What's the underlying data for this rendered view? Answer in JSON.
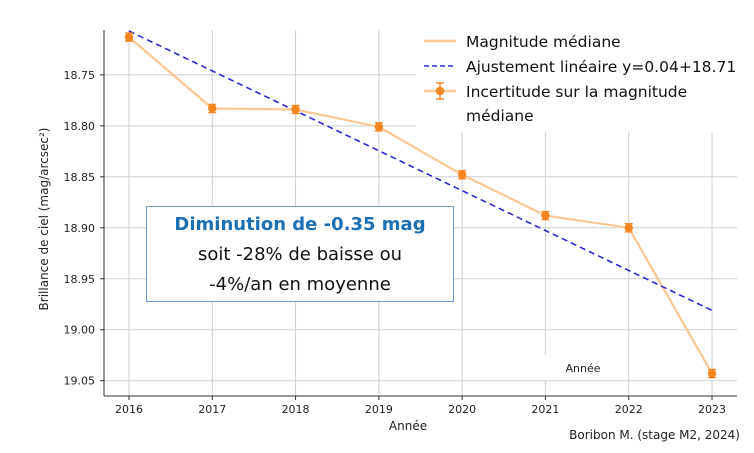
{
  "chart_data": {
    "type": "line",
    "xlabel": "Année",
    "ylabel": "Brillance de ciel (mag/arcsec²)",
    "x": [
      2016,
      2017,
      2018,
      2019,
      2020,
      2021,
      2022,
      2023
    ],
    "xlim": [
      2015.7,
      2023.3
    ],
    "ylim": [
      19.065,
      18.706
    ],
    "y_inverted": true,
    "yticks": [
      18.75,
      18.8,
      18.85,
      18.9,
      18.95,
      19.0,
      19.05
    ],
    "ytick_labels": [
      "18.75",
      "18.80",
      "18.85",
      "18.90",
      "18.95",
      "19.00",
      "19.05"
    ],
    "xtick_labels": [
      "2016",
      "2017",
      "2018",
      "2019",
      "2020",
      "2021",
      "2022",
      "2023"
    ],
    "grid": true,
    "series": [
      {
        "name": "Magnitude médiane",
        "kind": "line",
        "color": "#fbc893",
        "values": [
          18.713,
          18.783,
          18.784,
          18.801,
          18.848,
          18.888,
          18.9,
          19.043
        ]
      },
      {
        "name": "Ajustement linéaire y=0.04+18.71",
        "kind": "dashed-line",
        "color": "#2b2bd6",
        "x": [
          2016,
          2023
        ],
        "values": [
          18.707,
          18.981
        ]
      },
      {
        "name": "Incertitude sur la magnitude médiane",
        "kind": "errorbar",
        "color": "#f5841f",
        "values": [
          18.713,
          18.783,
          18.784,
          18.801,
          18.848,
          18.888,
          18.9,
          19.043
        ],
        "errors": [
          0.004,
          0.004,
          0.004,
          0.004,
          0.004,
          0.004,
          0.004,
          0.004
        ]
      }
    ],
    "legend": {
      "position": "top-right",
      "line1": "Magnitude médiane",
      "line2": "Ajustement linéaire y=0.04+18.71",
      "line3a": "Incertitude sur la magnitude",
      "line3b": "médiane"
    },
    "annotation": {
      "title": "Diminution de -0.35 mag",
      "line2": "soit -28% de baisse ou",
      "line3": "-4%/an en moyenne"
    },
    "inner_label": "Année"
  },
  "credit": "Boribon M. (stage M2, 2024)"
}
